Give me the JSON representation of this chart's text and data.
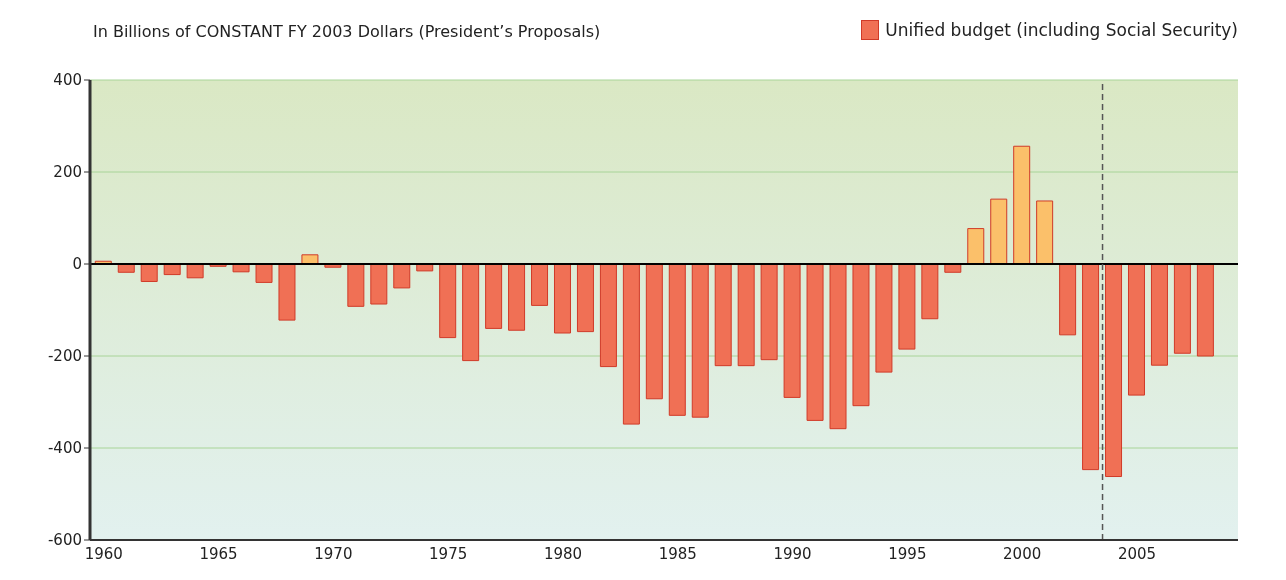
{
  "chart_data": {
    "type": "bar",
    "title": "In Billions of CONSTANT FY 2003 Dollars (President’s Proposals)",
    "x": [
      1960,
      1961,
      1962,
      1963,
      1964,
      1965,
      1966,
      1967,
      1968,
      1969,
      1970,
      1971,
      1972,
      1973,
      1974,
      1975,
      1976,
      1977,
      1978,
      1979,
      1980,
      1981,
      1982,
      1983,
      1984,
      1985,
      1986,
      1987,
      1988,
      1989,
      1990,
      1991,
      1992,
      1993,
      1994,
      1995,
      1996,
      1997,
      1998,
      1999,
      2000,
      2001,
      2002,
      2003,
      2004,
      2005,
      2006,
      2007,
      2008
    ],
    "series": [
      {
        "name": "Unified budget (including Social Security)",
        "color": "#f07055",
        "values": [
          6,
          -18,
          -38,
          -23,
          -30,
          -5,
          -17,
          -40,
          -122,
          20,
          -7,
          -92,
          -87,
          -52,
          -15,
          -160,
          -210,
          -140,
          -144,
          -90,
          -150,
          -147,
          -223,
          -348,
          -293,
          -329,
          -333,
          -221,
          -221,
          -208,
          -290,
          -340,
          -358,
          -308,
          -235,
          -185,
          -119,
          -18,
          77,
          141,
          256,
          137,
          -154,
          -447,
          -462,
          -285,
          -220,
          -194,
          -200
        ],
        "colors": [
          "#fbc06a",
          "#f07055",
          "#f07055",
          "#f07055",
          "#f07055",
          "#f07055",
          "#f07055",
          "#f07055",
          "#f07055",
          "#fbc06a",
          "#f07055",
          "#f07055",
          "#f07055",
          "#f07055",
          "#f07055",
          "#f07055",
          "#f07055",
          "#f07055",
          "#f07055",
          "#f07055",
          "#f07055",
          "#f07055",
          "#f07055",
          "#f07055",
          "#f07055",
          "#f07055",
          "#f07055",
          "#f07055",
          "#f07055",
          "#f07055",
          "#f07055",
          "#f07055",
          "#f07055",
          "#f07055",
          "#f07055",
          "#f07055",
          "#f07055",
          "#f07055",
          "#fbc06a",
          "#fbc06a",
          "#fbc06a",
          "#fbc06a",
          "#f07055",
          "#f07055",
          "#f07055",
          "#f07055",
          "#f07055",
          "#f07055",
          "#f07055"
        ]
      }
    ],
    "xlim": [
      1959.4,
      2009.4
    ],
    "xticks": [
      1960,
      1965,
      1970,
      1975,
      1980,
      1985,
      1990,
      1995,
      2000,
      2005
    ],
    "ylim": [
      -600,
      400
    ],
    "yticks": [
      -600,
      -400,
      -200,
      0,
      200,
      400
    ],
    "grid": "y",
    "legend": "top right",
    "ref_lines": [
      {
        "axis": "y",
        "value": 0,
        "color": "#000000",
        "line_style": "solid"
      },
      {
        "axis": "x",
        "value": 2003.5,
        "color": "#555555",
        "line_style": "dashed"
      }
    ]
  }
}
